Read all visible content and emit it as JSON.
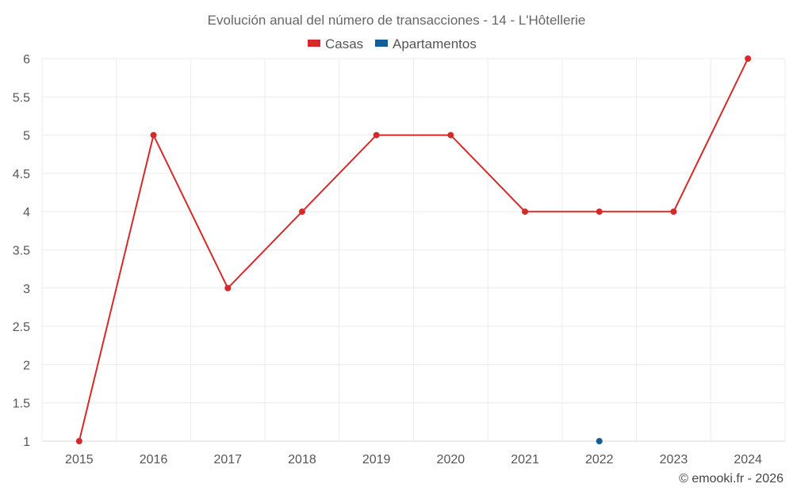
{
  "chart_data": {
    "type": "line",
    "title": "Evolución anual del número de transacciones - 14 - L'Hôtellerie",
    "categories": [
      "2015",
      "2016",
      "2017",
      "2018",
      "2019",
      "2020",
      "2021",
      "2022",
      "2023",
      "2024"
    ],
    "series": [
      {
        "name": "Casas",
        "color": "#d42a2a",
        "values": [
          1,
          5,
          3,
          4,
          5,
          5,
          4,
          4,
          4,
          6
        ]
      },
      {
        "name": "Apartamentos",
        "color": "#135e96",
        "values": [
          null,
          null,
          null,
          null,
          null,
          null,
          null,
          1,
          null,
          null
        ]
      }
    ],
    "ylim": [
      1,
      6
    ],
    "yticks": [
      "1",
      "1.5",
      "2",
      "2.5",
      "3",
      "3.5",
      "4",
      "4.5",
      "5",
      "5.5",
      "6"
    ],
    "xlabel": "",
    "ylabel": "",
    "legend_position": "top-center",
    "grid": true
  },
  "credit": "© emooki.fr - 2026"
}
